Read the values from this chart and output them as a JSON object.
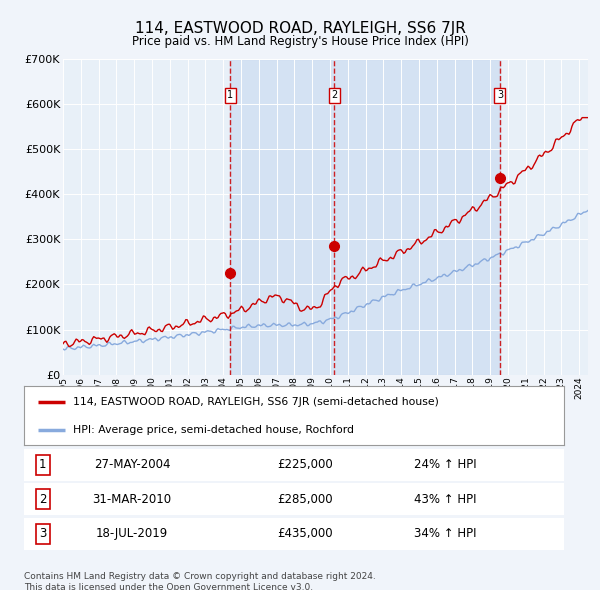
{
  "title": "114, EASTWOOD ROAD, RAYLEIGH, SS6 7JR",
  "subtitle": "Price paid vs. HM Land Registry's House Price Index (HPI)",
  "background_color": "#f0f4fa",
  "plot_bg_color": "#e8f0f8",
  "grid_color": "#ffffff",
  "red_line_color": "#cc0000",
  "blue_line_color": "#88aadd",
  "sale_marker_color": "#cc0000",
  "vline_color": "#cc0000",
  "ylim": [
    0,
    700000
  ],
  "yticks": [
    0,
    100000,
    200000,
    300000,
    400000,
    500000,
    600000,
    700000
  ],
  "ytick_labels": [
    "£0",
    "£100K",
    "£200K",
    "£300K",
    "£400K",
    "£500K",
    "£600K",
    "£700K"
  ],
  "sale_prices": [
    225000,
    285000,
    435000
  ],
  "sale_labels": [
    "1",
    "2",
    "3"
  ],
  "sale_date_strs": [
    "27-MAY-2004",
    "31-MAR-2010",
    "18-JUL-2019"
  ],
  "sale_price_strs": [
    "£225,000",
    "£285,000",
    "£435,000"
  ],
  "sale_hpi_strs": [
    "24% ↑ HPI",
    "43% ↑ HPI",
    "34% ↑ HPI"
  ],
  "legend_red": "114, EASTWOOD ROAD, RAYLEIGH, SS6 7JR (semi-detached house)",
  "legend_blue": "HPI: Average price, semi-detached house, Rochford",
  "footer": "Contains HM Land Registry data © Crown copyright and database right 2024.\nThis data is licensed under the Open Government Licence v3.0.",
  "x_start_year": 1995,
  "x_end_year": 2024,
  "sale_years_decimal": [
    2004.4,
    2010.25,
    2019.55
  ]
}
